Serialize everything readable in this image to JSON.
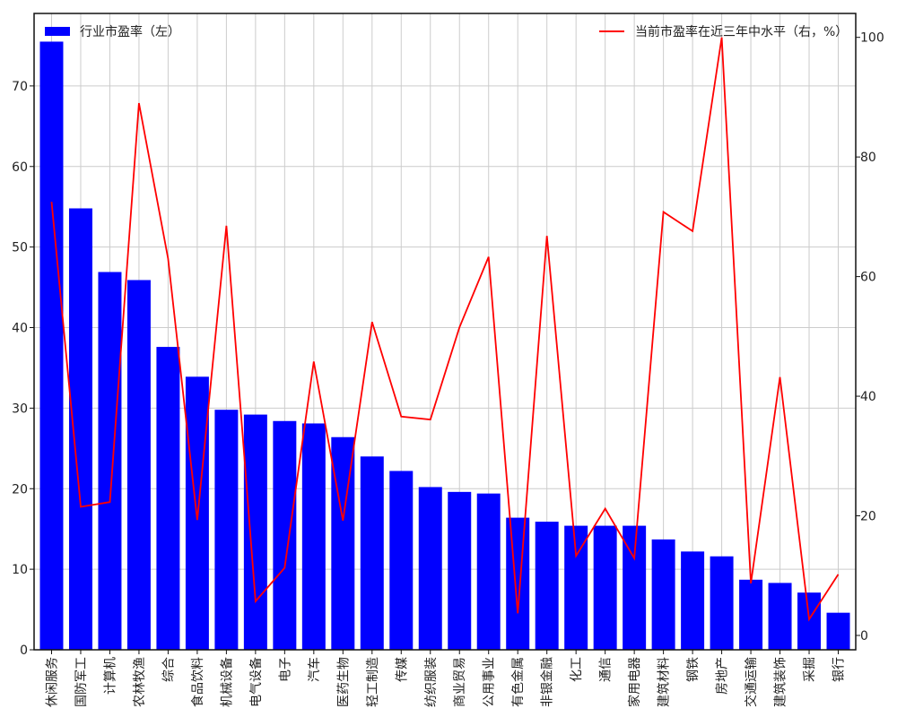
{
  "chart_data": {
    "type": "bar+line",
    "categories": [
      "休闲服务",
      "国防军工",
      "计算机",
      "农林牧渔",
      "综合",
      "食品饮料",
      "机械设备",
      "电气设备",
      "电子",
      "汽车",
      "医药生物",
      "轻工制造",
      "传媒",
      "纺织服装",
      "商业贸易",
      "公用事业",
      "有色金属",
      "非银金融",
      "化工",
      "通信",
      "家用电器",
      "建筑材料",
      "钢铁",
      "房地产",
      "交通运输",
      "建筑装饰",
      "采掘",
      "银行"
    ],
    "series": [
      {
        "name": "行业市盈率（左）",
        "axis": "left",
        "type": "bar",
        "color": "#0000ff",
        "values": [
          75.5,
          54.8,
          46.9,
          45.9,
          37.6,
          33.9,
          29.8,
          29.2,
          28.4,
          28.1,
          26.4,
          24.0,
          22.2,
          20.2,
          19.6,
          19.4,
          16.4,
          15.9,
          15.4,
          15.4,
          15.4,
          13.7,
          12.2,
          11.6,
          8.7,
          8.3,
          7.1,
          4.6
        ]
      },
      {
        "name": "当前市盈率在近三年中水平（右，%）",
        "axis": "right",
        "type": "line",
        "color": "#ff0000",
        "values": [
          72.5,
          21.5,
          22.3,
          89.0,
          63.0,
          19.3,
          68.5,
          5.7,
          11.3,
          45.8,
          19.2,
          52.4,
          36.6,
          36.1,
          51.5,
          63.3,
          3.7,
          66.8,
          13.3,
          21.2,
          12.9,
          70.8,
          67.6,
          100.0,
          8.7,
          43.2,
          2.7,
          10.2
        ]
      }
    ],
    "y_left": {
      "ylim": [
        0,
        79
      ],
      "ticks": [
        0,
        10,
        20,
        30,
        40,
        50,
        60,
        70
      ]
    },
    "y_right": {
      "ylim": [
        -2.4,
        104.0
      ],
      "ticks": [
        0,
        20,
        40,
        60,
        80,
        100
      ]
    },
    "grid": true,
    "legend": {
      "left_entry_placement": "top-left",
      "right_entry_placement": "top-right"
    }
  }
}
